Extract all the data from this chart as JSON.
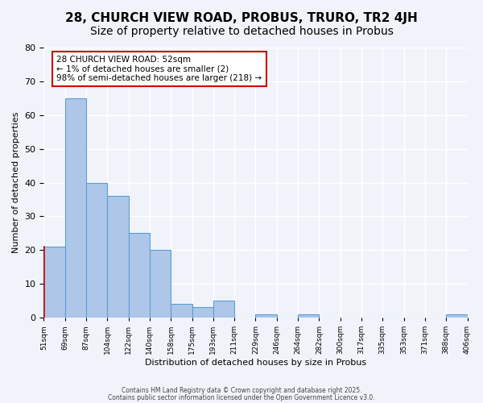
{
  "title1": "28, CHURCH VIEW ROAD, PROBUS, TRURO, TR2 4JH",
  "title2": "Size of property relative to detached houses in Probus",
  "xlabel": "Distribution of detached houses by size in Probus",
  "ylabel": "Number of detached properties",
  "bar_values": [
    21,
    65,
    40,
    36,
    25,
    20,
    4,
    3,
    5,
    0,
    1,
    0,
    1,
    0,
    0,
    0,
    0,
    0,
    0,
    1
  ],
  "bin_labels": [
    "51sqm",
    "69sqm",
    "87sqm",
    "104sqm",
    "122sqm",
    "140sqm",
    "158sqm",
    "175sqm",
    "193sqm",
    "211sqm",
    "229sqm",
    "246sqm",
    "264sqm",
    "282sqm",
    "300sqm",
    "317sqm",
    "335sqm",
    "353sqm",
    "371sqm",
    "388sqm",
    "406sqm"
  ],
  "bar_color": "#aec6e8",
  "bar_edge_color": "#5a9fd4",
  "highlight_edge_color": "#cc0000",
  "ylim": [
    0,
    80
  ],
  "yticks": [
    0,
    10,
    20,
    30,
    40,
    50,
    60,
    70,
    80
  ],
  "annotation_title": "28 CHURCH VIEW ROAD: 52sqm",
  "annotation_line1": "← 1% of detached houses are smaller (2)",
  "annotation_line2": "98% of semi-detached houses are larger (218) →",
  "annotation_box_color": "#ffffff",
  "annotation_box_edge": "#cc0000",
  "footer1": "Contains HM Land Registry data © Crown copyright and database right 2025.",
  "footer2": "Contains public sector information licensed under the Open Government Licence v3.0.",
  "bg_color": "#f0f4fa",
  "grid_color": "#ffffff",
  "title1_fontsize": 11,
  "title2_fontsize": 10
}
